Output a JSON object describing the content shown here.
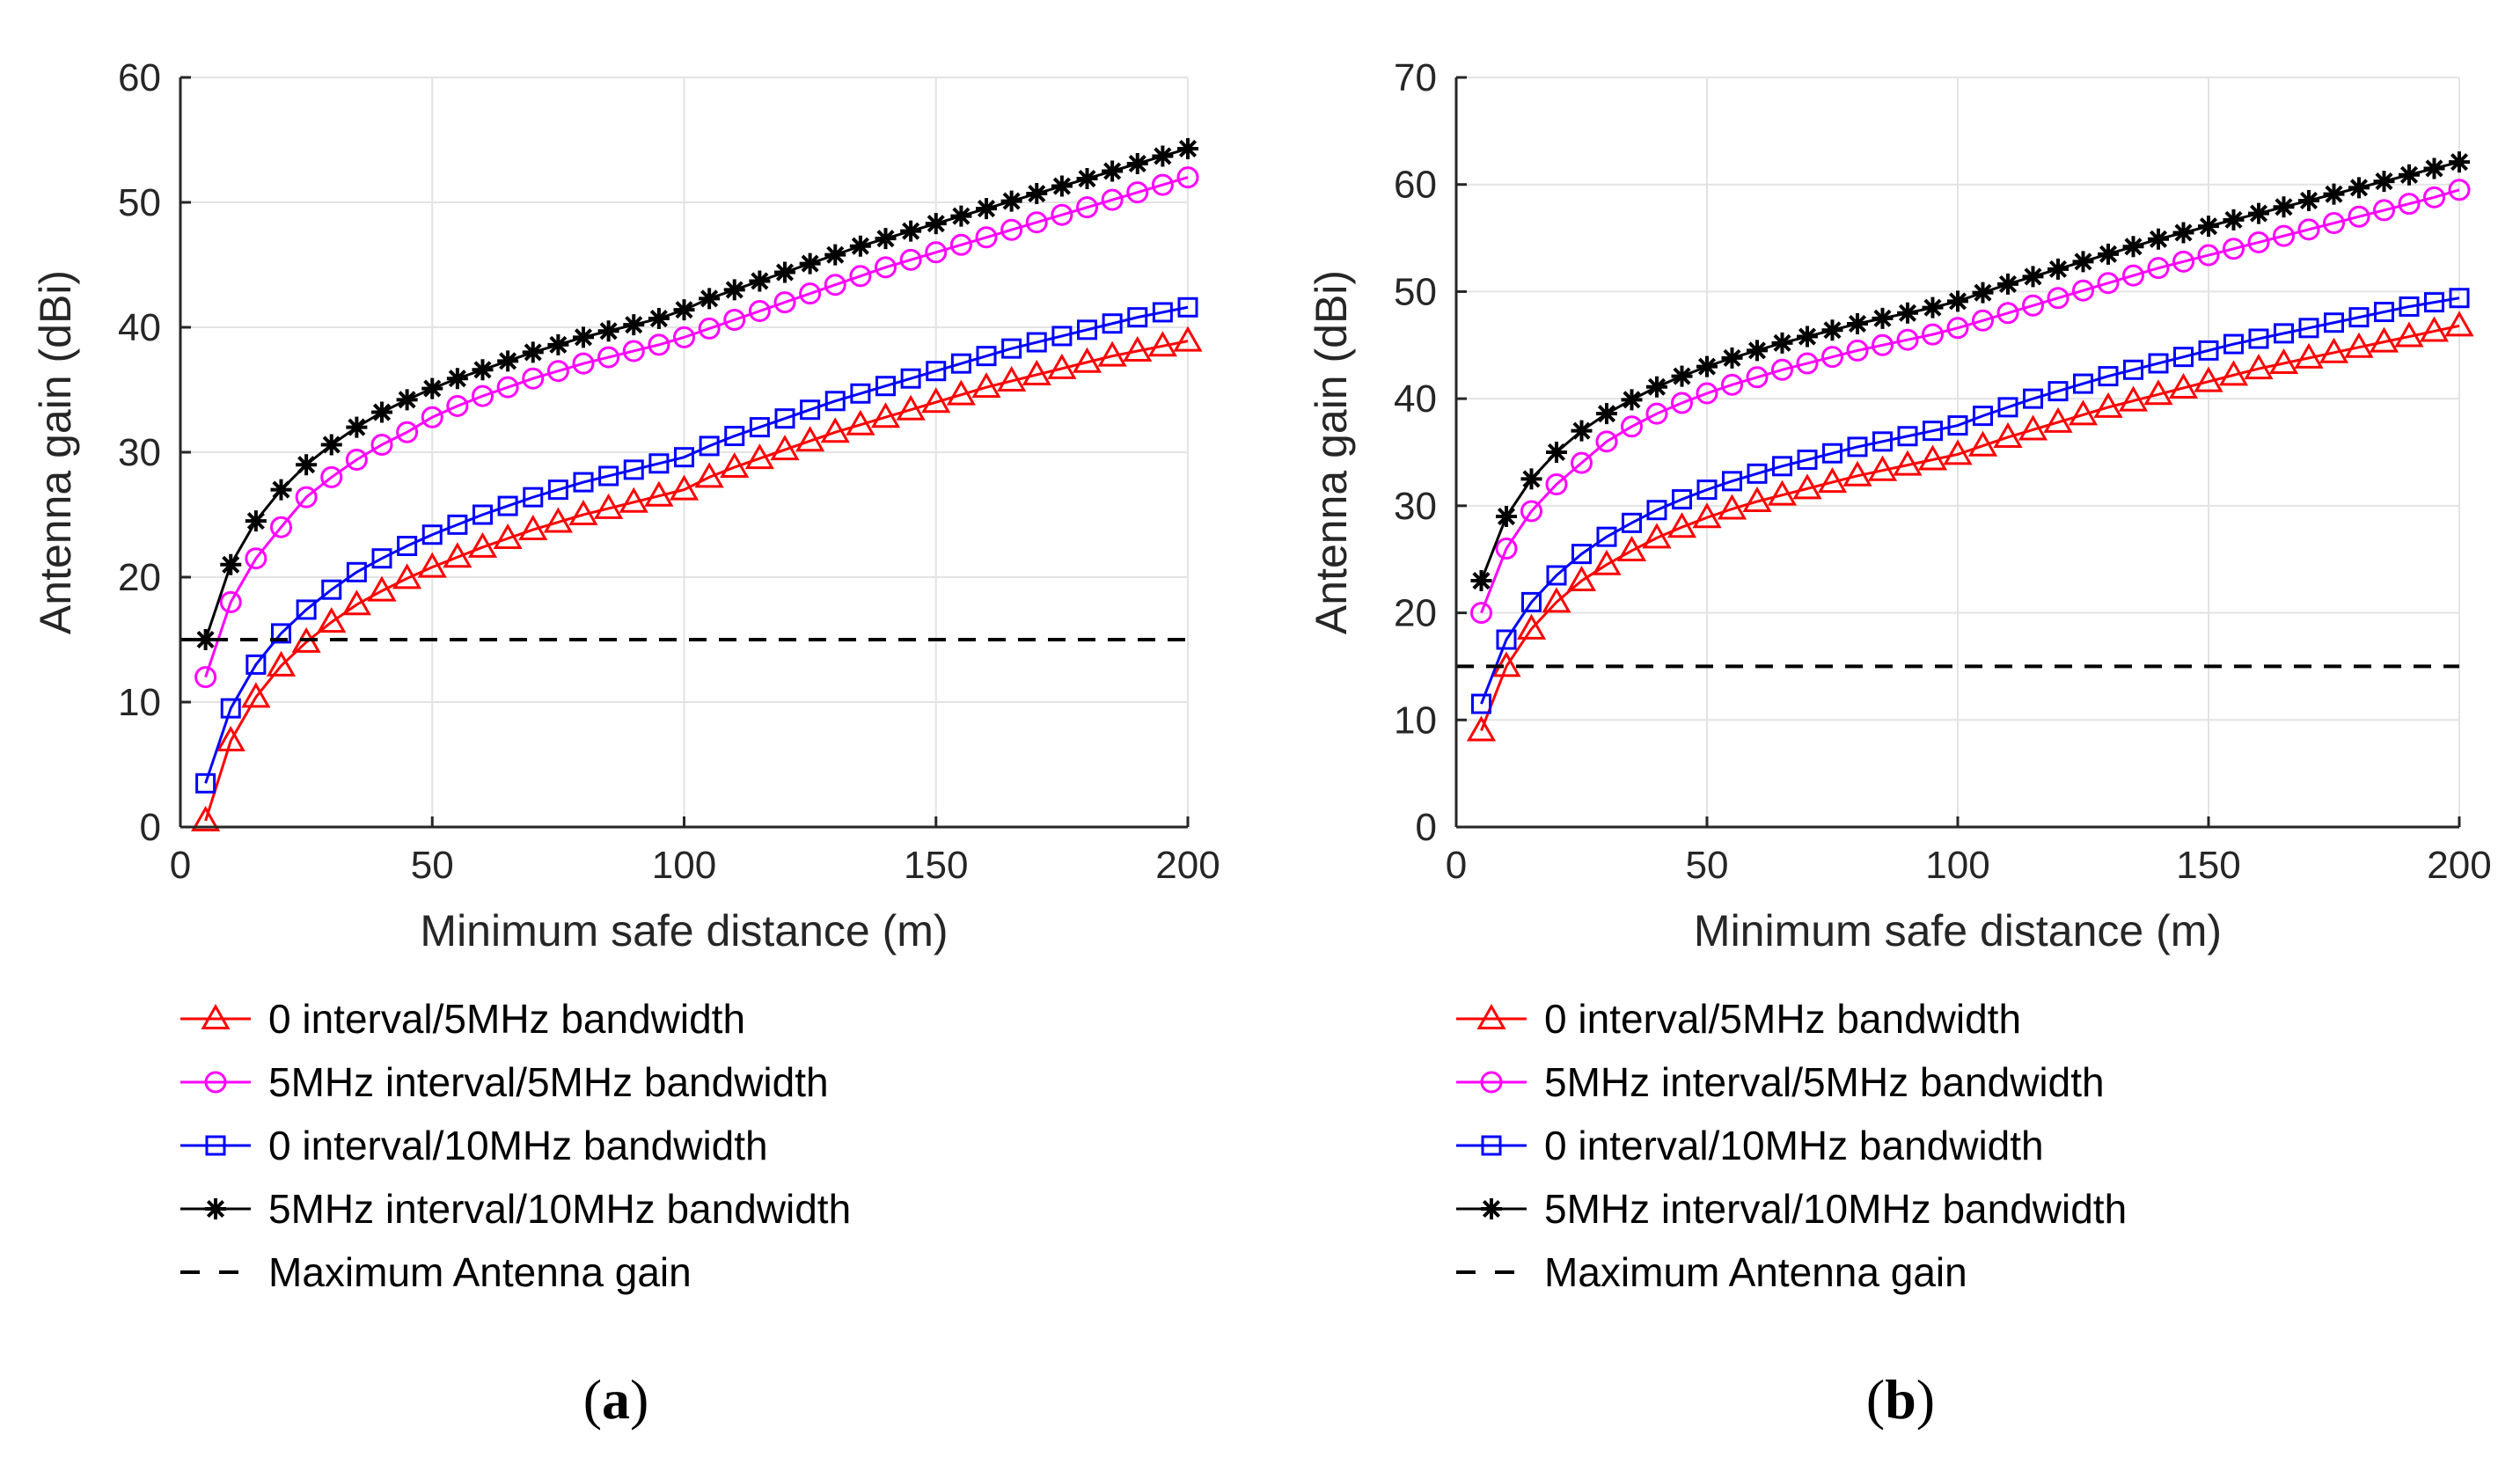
{
  "chart_data": [
    {
      "type": "line",
      "caption": "a",
      "xlabel": "Minimum safe distance (m)",
      "ylabel": "Antenna gain (dBi)",
      "xlim": [
        0,
        200
      ],
      "ylim": [
        0,
        60
      ],
      "xticks": [
        0,
        50,
        100,
        150,
        200
      ],
      "yticks": [
        0,
        10,
        20,
        30,
        40,
        50,
        60
      ],
      "grid": true,
      "legend_position": "below",
      "series": [
        {
          "name": "0 interval/5MHz bandwidth",
          "color": "#ff0000",
          "marker": "triangle",
          "x": [
            5,
            10,
            15,
            20,
            25,
            30,
            35,
            40,
            45,
            50,
            55,
            60,
            65,
            70,
            75,
            80,
            85,
            90,
            95,
            100,
            105,
            110,
            115,
            120,
            125,
            130,
            135,
            140,
            145,
            150,
            155,
            160,
            165,
            170,
            175,
            180,
            185,
            190,
            195,
            200
          ],
          "values": [
            0.5,
            6.9,
            10.4,
            12.9,
            14.8,
            16.4,
            17.8,
            18.9,
            19.9,
            20.8,
            21.6,
            22.4,
            23.1,
            23.8,
            24.4,
            25.0,
            25.5,
            26.0,
            26.5,
            27.0,
            28.0,
            28.8,
            29.5,
            30.2,
            30.9,
            31.6,
            32.2,
            32.8,
            33.4,
            34.0,
            34.6,
            35.2,
            35.7,
            36.2,
            36.7,
            37.2,
            37.7,
            38.1,
            38.5,
            38.9
          ]
        },
        {
          "name": "5MHz interval/5MHz bandwidth",
          "color": "#ff00ff",
          "marker": "circle",
          "x": [
            5,
            10,
            15,
            20,
            25,
            30,
            35,
            40,
            45,
            50,
            55,
            60,
            65,
            70,
            75,
            80,
            85,
            90,
            95,
            100,
            105,
            110,
            115,
            120,
            125,
            130,
            135,
            140,
            145,
            150,
            155,
            160,
            165,
            170,
            175,
            180,
            185,
            190,
            195,
            200
          ],
          "values": [
            12.0,
            18.0,
            21.5,
            24.0,
            26.4,
            28.0,
            29.4,
            30.6,
            31.6,
            32.8,
            33.7,
            34.5,
            35.2,
            35.9,
            36.5,
            37.1,
            37.6,
            38.1,
            38.6,
            39.2,
            39.9,
            40.6,
            41.3,
            42.0,
            42.7,
            43.4,
            44.1,
            44.8,
            45.4,
            46.0,
            46.6,
            47.2,
            47.8,
            48.4,
            49.0,
            49.6,
            50.2,
            50.8,
            51.4,
            52.0
          ]
        },
        {
          "name": "0 interval/10MHz bandwidth",
          "color": "#0000ff",
          "marker": "square",
          "x": [
            5,
            10,
            15,
            20,
            25,
            30,
            35,
            40,
            45,
            50,
            55,
            60,
            65,
            70,
            75,
            80,
            85,
            90,
            95,
            100,
            105,
            110,
            115,
            120,
            125,
            130,
            135,
            140,
            145,
            150,
            155,
            160,
            165,
            170,
            175,
            180,
            185,
            190,
            195,
            200
          ],
          "values": [
            3.5,
            9.5,
            13.0,
            15.5,
            17.4,
            19.0,
            20.4,
            21.5,
            22.5,
            23.4,
            24.2,
            25.0,
            25.7,
            26.4,
            27.0,
            27.6,
            28.1,
            28.6,
            29.1,
            29.6,
            30.5,
            31.3,
            32.0,
            32.7,
            33.4,
            34.1,
            34.7,
            35.3,
            35.9,
            36.5,
            37.1,
            37.7,
            38.3,
            38.8,
            39.3,
            39.8,
            40.3,
            40.8,
            41.2,
            41.6
          ]
        },
        {
          "name": "5MHz interval/10MHz bandwidth",
          "color": "#000000",
          "marker": "star",
          "x": [
            5,
            10,
            15,
            20,
            25,
            30,
            35,
            40,
            45,
            50,
            55,
            60,
            65,
            70,
            75,
            80,
            85,
            90,
            95,
            100,
            105,
            110,
            115,
            120,
            125,
            130,
            135,
            140,
            145,
            150,
            155,
            160,
            165,
            170,
            175,
            180,
            185,
            190,
            195,
            200
          ],
          "values": [
            15.0,
            21.0,
            24.5,
            27.0,
            29.0,
            30.6,
            32.0,
            33.2,
            34.2,
            35.1,
            35.9,
            36.6,
            37.3,
            38.0,
            38.6,
            39.2,
            39.7,
            40.2,
            40.7,
            41.4,
            42.3,
            43.0,
            43.7,
            44.4,
            45.1,
            45.8,
            46.5,
            47.1,
            47.7,
            48.3,
            48.9,
            49.5,
            50.1,
            50.7,
            51.3,
            51.9,
            52.5,
            53.1,
            53.7,
            54.3
          ]
        },
        {
          "name": "Maximum Antenna gain",
          "color": "#000000",
          "marker": "none",
          "dash": true,
          "x": [
            0,
            200
          ],
          "values": [
            15,
            15
          ]
        }
      ]
    },
    {
      "type": "line",
      "caption": "b",
      "xlabel": "Minimum safe distance (m)",
      "ylabel": "Antenna gain (dBi)",
      "xlim": [
        0,
        200
      ],
      "ylim": [
        0,
        70
      ],
      "xticks": [
        0,
        50,
        100,
        150,
        200
      ],
      "yticks": [
        0,
        10,
        20,
        30,
        40,
        50,
        60,
        70
      ],
      "grid": true,
      "legend_position": "below",
      "series": [
        {
          "name": "0 interval/5MHz bandwidth",
          "color": "#ff0000",
          "marker": "triangle",
          "x": [
            5,
            10,
            15,
            20,
            25,
            30,
            35,
            40,
            45,
            50,
            55,
            60,
            65,
            70,
            75,
            80,
            85,
            90,
            95,
            100,
            105,
            110,
            115,
            120,
            125,
            130,
            135,
            140,
            145,
            150,
            155,
            160,
            165,
            170,
            175,
            180,
            185,
            190,
            195,
            200
          ],
          "values": [
            9.0,
            15.0,
            18.5,
            21.0,
            23.0,
            24.5,
            25.8,
            27.0,
            28.0,
            28.9,
            29.7,
            30.4,
            31.0,
            31.6,
            32.2,
            32.8,
            33.3,
            33.8,
            34.3,
            34.8,
            35.6,
            36.4,
            37.1,
            37.8,
            38.5,
            39.2,
            39.8,
            40.4,
            41.0,
            41.6,
            42.2,
            42.8,
            43.3,
            43.8,
            44.3,
            44.8,
            45.3,
            45.8,
            46.3,
            46.8
          ]
        },
        {
          "name": "5MHz interval/5MHz bandwidth",
          "color": "#ff00ff",
          "marker": "circle",
          "x": [
            5,
            10,
            15,
            20,
            25,
            30,
            35,
            40,
            45,
            50,
            55,
            60,
            65,
            70,
            75,
            80,
            85,
            90,
            95,
            100,
            105,
            110,
            115,
            120,
            125,
            130,
            135,
            140,
            145,
            150,
            155,
            160,
            165,
            170,
            175,
            180,
            185,
            190,
            195,
            200
          ],
          "values": [
            20.0,
            26.0,
            29.5,
            32.0,
            34.0,
            36.0,
            37.4,
            38.6,
            39.6,
            40.5,
            41.3,
            42.0,
            42.7,
            43.3,
            43.9,
            44.5,
            45.0,
            45.5,
            46.0,
            46.6,
            47.3,
            48.0,
            48.7,
            49.4,
            50.1,
            50.8,
            51.5,
            52.2,
            52.8,
            53.4,
            54.0,
            54.6,
            55.2,
            55.8,
            56.4,
            57.0,
            57.6,
            58.2,
            58.8,
            59.5
          ]
        },
        {
          "name": "0 interval/10MHz bandwidth",
          "color": "#0000ff",
          "marker": "square",
          "x": [
            5,
            10,
            15,
            20,
            25,
            30,
            35,
            40,
            45,
            50,
            55,
            60,
            65,
            70,
            75,
            80,
            85,
            90,
            95,
            100,
            105,
            110,
            115,
            120,
            125,
            130,
            135,
            140,
            145,
            150,
            155,
            160,
            165,
            170,
            175,
            180,
            185,
            190,
            195,
            200
          ],
          "values": [
            11.5,
            17.5,
            21.0,
            23.5,
            25.5,
            27.1,
            28.4,
            29.6,
            30.6,
            31.5,
            32.3,
            33.0,
            33.7,
            34.3,
            34.9,
            35.5,
            36.0,
            36.5,
            37.0,
            37.5,
            38.4,
            39.2,
            40.0,
            40.7,
            41.4,
            42.1,
            42.7,
            43.3,
            43.9,
            44.5,
            45.1,
            45.6,
            46.1,
            46.6,
            47.1,
            47.6,
            48.1,
            48.6,
            49.0,
            49.4
          ]
        },
        {
          "name": "5MHz interval/10MHz bandwidth",
          "color": "#000000",
          "marker": "star",
          "x": [
            5,
            10,
            15,
            20,
            25,
            30,
            35,
            40,
            45,
            50,
            55,
            60,
            65,
            70,
            75,
            80,
            85,
            90,
            95,
            100,
            105,
            110,
            115,
            120,
            125,
            130,
            135,
            140,
            145,
            150,
            155,
            160,
            165,
            170,
            175,
            180,
            185,
            190,
            195,
            200
          ],
          "values": [
            23.0,
            29.0,
            32.5,
            35.0,
            37.0,
            38.6,
            39.9,
            41.1,
            42.1,
            43.0,
            43.8,
            44.5,
            45.2,
            45.8,
            46.4,
            47.0,
            47.5,
            48.0,
            48.5,
            49.1,
            49.9,
            50.7,
            51.4,
            52.1,
            52.8,
            53.5,
            54.2,
            54.9,
            55.5,
            56.1,
            56.7,
            57.3,
            57.9,
            58.5,
            59.1,
            59.7,
            60.3,
            60.9,
            61.5,
            62.1
          ]
        },
        {
          "name": "Maximum Antenna gain",
          "color": "#000000",
          "marker": "none",
          "dash": true,
          "x": [
            0,
            200
          ],
          "values": [
            15,
            15
          ]
        }
      ]
    }
  ]
}
